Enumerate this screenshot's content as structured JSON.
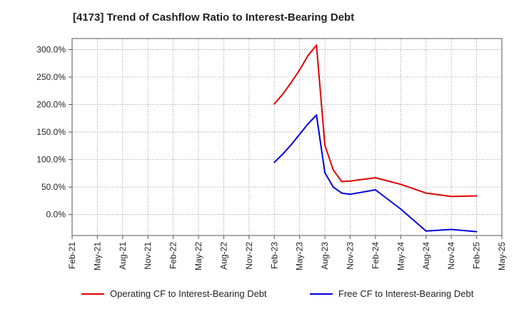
{
  "chart_data": {
    "type": "line",
    "title": "[4173]  Trend of Cashflow Ratio to Interest-Bearing Debt",
    "xlabel": "",
    "ylabel": "",
    "x_ticks": [
      "Feb-21",
      "May-21",
      "Aug-21",
      "Nov-21",
      "Feb-22",
      "May-22",
      "Aug-22",
      "Nov-22",
      "Feb-23",
      "May-23",
      "Aug-23",
      "Nov-23",
      "Feb-24",
      "May-24",
      "Aug-24",
      "Nov-24",
      "Feb-25",
      "May-25"
    ],
    "y_ticks": [
      0,
      50,
      100,
      150,
      200,
      250,
      300
    ],
    "y_tick_labels": [
      "0.0%",
      "50.0%",
      "100.0%",
      "150.0%",
      "200.0%",
      "250.0%",
      "300.0%"
    ],
    "ylim": [
      -38,
      320
    ],
    "grid": true,
    "legend_position": "bottom",
    "series": [
      {
        "name": "Operating CF to Interest-Bearing Debt",
        "color": "#e00000",
        "x": [
          "Feb-23",
          "Mar-23",
          "Apr-23",
          "May-23",
          "Jun-23",
          "Jul-23",
          "Aug-23",
          "Sep-23",
          "Oct-23",
          "Nov-23",
          "Feb-24",
          "May-24",
          "Aug-24",
          "Nov-24",
          "Feb-25"
        ],
        "values": [
          201,
          219,
          240,
          263,
          289,
          308,
          126,
          81,
          60,
          61,
          67,
          55,
          39,
          33,
          34
        ]
      },
      {
        "name": "Free CF to Interest-Bearing Debt",
        "color": "#0000dd",
        "x": [
          "Feb-23",
          "Mar-23",
          "Apr-23",
          "May-23",
          "Jun-23",
          "Jul-23",
          "Aug-23",
          "Sep-23",
          "Oct-23",
          "Nov-23",
          "Feb-24",
          "May-24",
          "Aug-24",
          "Nov-24",
          "Feb-25"
        ],
        "values": [
          95,
          110,
          127,
          146,
          165,
          181,
          76,
          50,
          39,
          37,
          45,
          10,
          -30,
          -27,
          -31
        ]
      }
    ]
  }
}
